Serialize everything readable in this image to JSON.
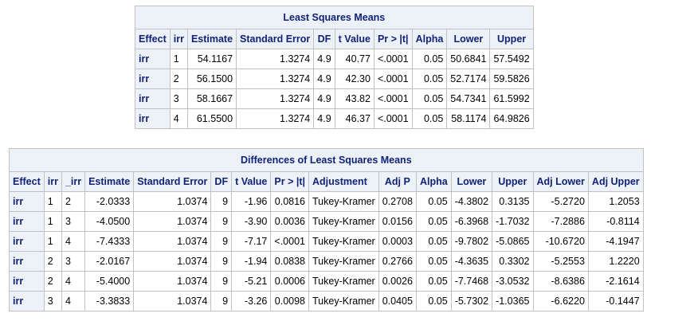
{
  "lsmeans": {
    "title": "Least Squares Means",
    "headers": [
      "Effect",
      "irr",
      "Estimate",
      "Standard Error",
      "DF",
      "t Value",
      "Pr > |t|",
      "Alpha",
      "Lower",
      "Upper"
    ],
    "rows": [
      [
        "irr",
        "1",
        "54.1167",
        "1.3274",
        "4.9",
        "40.77",
        "<.0001",
        "0.05",
        "50.6841",
        "57.5492"
      ],
      [
        "irr",
        "2",
        "56.1500",
        "1.3274",
        "4.9",
        "42.30",
        "<.0001",
        "0.05",
        "52.7174",
        "59.5826"
      ],
      [
        "irr",
        "3",
        "58.1667",
        "1.3274",
        "4.9",
        "43.82",
        "<.0001",
        "0.05",
        "54.7341",
        "61.5992"
      ],
      [
        "irr",
        "4",
        "61.5500",
        "1.3274",
        "4.9",
        "46.37",
        "<.0001",
        "0.05",
        "58.1174",
        "64.9826"
      ]
    ]
  },
  "diffs": {
    "title": "Differences of Least Squares Means",
    "headers": [
      "Effect",
      "irr",
      "_irr",
      "Estimate",
      "Standard Error",
      "DF",
      "t Value",
      "Pr > |t|",
      "Adjustment",
      "Adj P",
      "Alpha",
      "Lower",
      "Upper",
      "Adj Lower",
      "Adj Upper"
    ],
    "rows": [
      [
        "irr",
        "1",
        "2",
        "-2.0333",
        "1.0374",
        "9",
        "-1.96",
        "0.0816",
        "Tukey-Kramer",
        "0.2708",
        "0.05",
        "-4.3802",
        "0.3135",
        "-5.2720",
        "1.2053"
      ],
      [
        "irr",
        "1",
        "3",
        "-4.0500",
        "1.0374",
        "9",
        "-3.90",
        "0.0036",
        "Tukey-Kramer",
        "0.0156",
        "0.05",
        "-6.3968",
        "-1.7032",
        "-7.2886",
        "-0.8114"
      ],
      [
        "irr",
        "1",
        "4",
        "-7.4333",
        "1.0374",
        "9",
        "-7.17",
        "<.0001",
        "Tukey-Kramer",
        "0.0003",
        "0.05",
        "-9.7802",
        "-5.0865",
        "-10.6720",
        "-4.1947"
      ],
      [
        "irr",
        "2",
        "3",
        "-2.0167",
        "1.0374",
        "9",
        "-1.94",
        "0.0838",
        "Tukey-Kramer",
        "0.2766",
        "0.05",
        "-4.3635",
        "0.3302",
        "-5.2553",
        "1.2220"
      ],
      [
        "irr",
        "2",
        "4",
        "-5.4000",
        "1.0374",
        "9",
        "-5.21",
        "0.0006",
        "Tukey-Kramer",
        "0.0026",
        "0.05",
        "-7.7468",
        "-3.0532",
        "-8.6386",
        "-2.1614"
      ],
      [
        "irr",
        "3",
        "4",
        "-3.3833",
        "1.0374",
        "9",
        "-3.26",
        "0.0098",
        "Tukey-Kramer",
        "0.0405",
        "0.05",
        "-5.7302",
        "-1.0365",
        "-6.6220",
        "-0.1447"
      ]
    ]
  }
}
